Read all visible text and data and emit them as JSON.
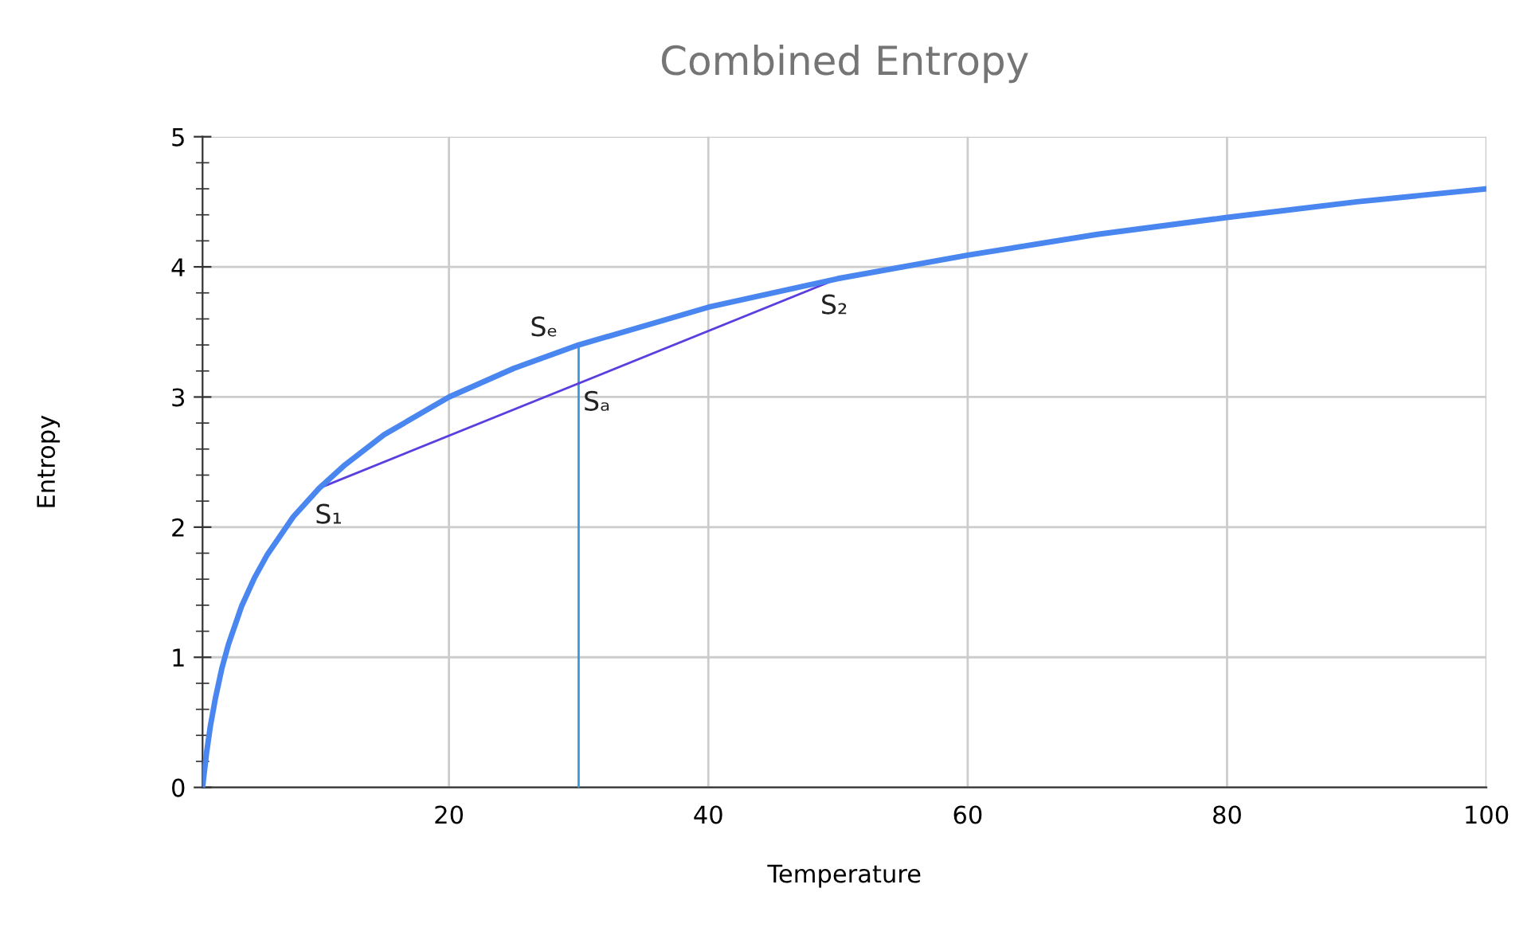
{
  "chart_data": {
    "type": "line",
    "title": "Combined Entropy",
    "xlabel": "Temperature",
    "ylabel": "Entropy",
    "xlim": [
      1,
      100
    ],
    "xticks": [
      20,
      40,
      60,
      80,
      100
    ],
    "ylim": [
      0,
      5
    ],
    "yticks": [
      0,
      1,
      2,
      3,
      4,
      5
    ],
    "grid": true,
    "legend": false,
    "marker": "none",
    "line_style": "solid",
    "series": [
      {
        "color": "#4a86f0",
        "x": [
          1,
          1.3,
          1.6,
          2,
          2.5,
          3,
          4,
          5,
          6,
          8,
          10,
          12,
          15,
          20,
          25,
          30,
          40,
          50,
          60,
          70,
          80,
          90,
          100
        ],
        "values": [
          0,
          0.26,
          0.47,
          0.69,
          0.92,
          1.1,
          1.39,
          1.61,
          1.79,
          2.08,
          2.3,
          2.48,
          2.71,
          3.0,
          3.22,
          3.4,
          3.69,
          3.91,
          4.09,
          4.25,
          4.38,
          4.5,
          4.6
        ]
      },
      {
        "color": "#5a3ee0",
        "x": [
          10,
          50
        ],
        "values": [
          2.3,
          3.91
        ]
      },
      {
        "color": "#3a9ad9",
        "x": [
          30,
          30
        ],
        "values": [
          0,
          3.4
        ]
      }
    ],
    "annotations": [
      {
        "text": "S₁",
        "x": 10,
        "y": 2.3
      },
      {
        "text": "Sₑ",
        "x": 30,
        "y": 3.4
      },
      {
        "text": "Sₐ",
        "x": 30,
        "y": 3.1
      },
      {
        "text": "S₂",
        "x": 50,
        "y": 3.91
      }
    ]
  }
}
